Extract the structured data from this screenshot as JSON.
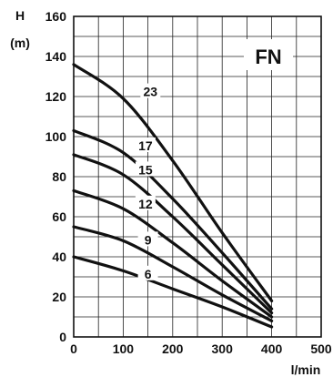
{
  "chart_data": {
    "type": "line",
    "title": "",
    "badge": "FN",
    "ylabel_top": "H",
    "ylabel_unit": "(m)",
    "xlabel": "l/min",
    "xlim": [
      0,
      500
    ],
    "ylim": [
      0,
      160
    ],
    "x_ticks": [
      0,
      100,
      200,
      300,
      400,
      500
    ],
    "y_ticks": [
      0,
      20,
      40,
      60,
      80,
      100,
      120,
      140,
      160
    ],
    "grid": true,
    "series": [
      {
        "name": "6",
        "points": [
          [
            0,
            40
          ],
          [
            100,
            33
          ],
          [
            200,
            24
          ],
          [
            300,
            15
          ],
          [
            400,
            5
          ]
        ],
        "label_at": [
          150,
          31
        ]
      },
      {
        "name": "9",
        "points": [
          [
            0,
            55
          ],
          [
            100,
            48
          ],
          [
            200,
            35
          ],
          [
            300,
            21
          ],
          [
            400,
            8
          ]
        ],
        "label_at": [
          150,
          48
        ]
      },
      {
        "name": "12",
        "points": [
          [
            0,
            73
          ],
          [
            100,
            64
          ],
          [
            200,
            47
          ],
          [
            300,
            28
          ],
          [
            400,
            10
          ]
        ],
        "label_at": [
          145,
          66
        ]
      },
      {
        "name": "15",
        "points": [
          [
            0,
            91
          ],
          [
            100,
            81
          ],
          [
            200,
            60
          ],
          [
            300,
            36
          ],
          [
            400,
            12
          ]
        ],
        "label_at": [
          145,
          83
        ]
      },
      {
        "name": "17",
        "points": [
          [
            0,
            103
          ],
          [
            100,
            92
          ],
          [
            200,
            69
          ],
          [
            300,
            42
          ],
          [
            400,
            14
          ]
        ],
        "label_at": [
          145,
          95
        ]
      },
      {
        "name": "23",
        "points": [
          [
            0,
            136
          ],
          [
            100,
            119
          ],
          [
            200,
            88
          ],
          [
            300,
            52
          ],
          [
            400,
            18
          ]
        ],
        "label_at": [
          155,
          122
        ]
      }
    ]
  }
}
